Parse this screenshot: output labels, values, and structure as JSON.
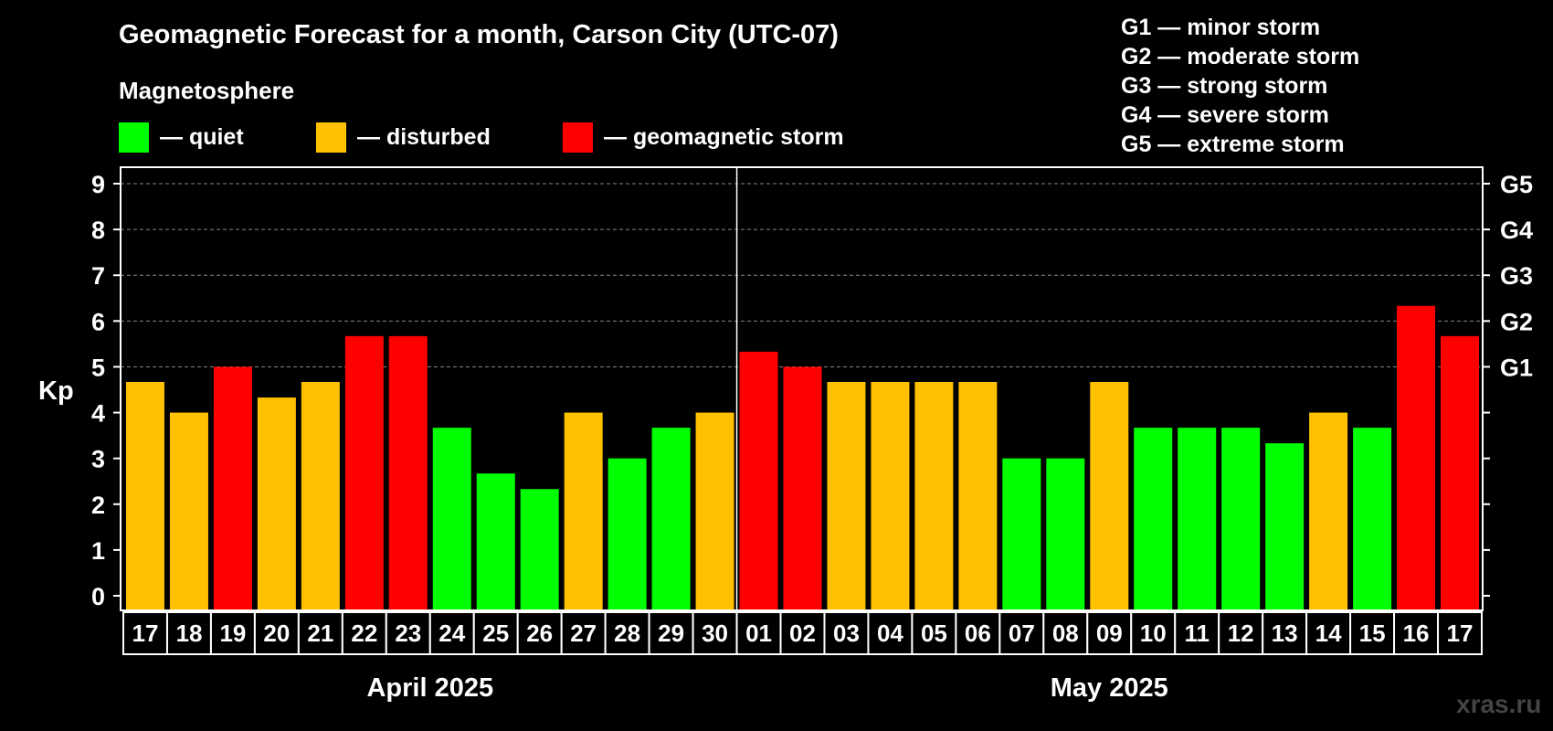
{
  "chart_data": {
    "type": "bar",
    "title": "Geomagnetic Forecast for a month, Carson City (UTC-07)",
    "ylabel": "Kp",
    "ylim": [
      0,
      9
    ],
    "yticks": [
      "0",
      "1",
      "2",
      "3",
      "4",
      "5",
      "6",
      "7",
      "8",
      "9"
    ],
    "right_ticks": [
      {
        "value": 5,
        "label": "G1"
      },
      {
        "value": 6,
        "label": "G2"
      },
      {
        "value": 7,
        "label": "G3"
      },
      {
        "value": 8,
        "label": "G4"
      },
      {
        "value": 9,
        "label": "G5"
      }
    ],
    "categories": [
      "17",
      "18",
      "19",
      "20",
      "21",
      "22",
      "23",
      "24",
      "25",
      "26",
      "27",
      "28",
      "29",
      "30",
      "01",
      "02",
      "03",
      "04",
      "05",
      "06",
      "07",
      "08",
      "09",
      "10",
      "11",
      "12",
      "13",
      "14",
      "15",
      "16",
      "17"
    ],
    "values": [
      4.67,
      4.0,
      5.0,
      4.33,
      4.67,
      5.67,
      5.67,
      3.67,
      2.67,
      2.33,
      4.0,
      3.0,
      3.67,
      4.0,
      5.33,
      5.0,
      4.67,
      4.67,
      4.67,
      4.67,
      3.0,
      3.0,
      4.67,
      3.67,
      3.67,
      3.67,
      3.33,
      4.0,
      3.67,
      6.33,
      5.67
    ],
    "status": [
      "disturbed",
      "disturbed",
      "storm",
      "disturbed",
      "disturbed",
      "storm",
      "storm",
      "quiet",
      "quiet",
      "quiet",
      "disturbed",
      "quiet",
      "quiet",
      "disturbed",
      "storm",
      "storm",
      "disturbed",
      "disturbed",
      "disturbed",
      "disturbed",
      "quiet",
      "quiet",
      "disturbed",
      "quiet",
      "quiet",
      "quiet",
      "quiet",
      "disturbed",
      "quiet",
      "storm",
      "storm"
    ],
    "months": [
      {
        "label": "April 2025",
        "start": 0,
        "end": 13
      },
      {
        "label": "May 2025",
        "start": 14,
        "end": 30
      }
    ],
    "grid": true
  },
  "colors": {
    "quiet": "#00FF00",
    "disturbed": "#FFC000",
    "storm": "#FF0000",
    "background": "#000000",
    "grid": "#888888",
    "axis": "#FFFFFF"
  },
  "legend": {
    "title": "Magnetosphere",
    "items": [
      {
        "key": "quiet",
        "label": "— quiet"
      },
      {
        "key": "disturbed",
        "label": "— disturbed"
      },
      {
        "key": "storm",
        "label": "— geomagnetic storm"
      }
    ]
  },
  "g_scale": [
    "G1 — minor storm",
    "G2 — moderate storm",
    "G3 — strong storm",
    "G4 — severe storm",
    "G5 — extreme storm"
  ],
  "watermark": "xras.ru"
}
